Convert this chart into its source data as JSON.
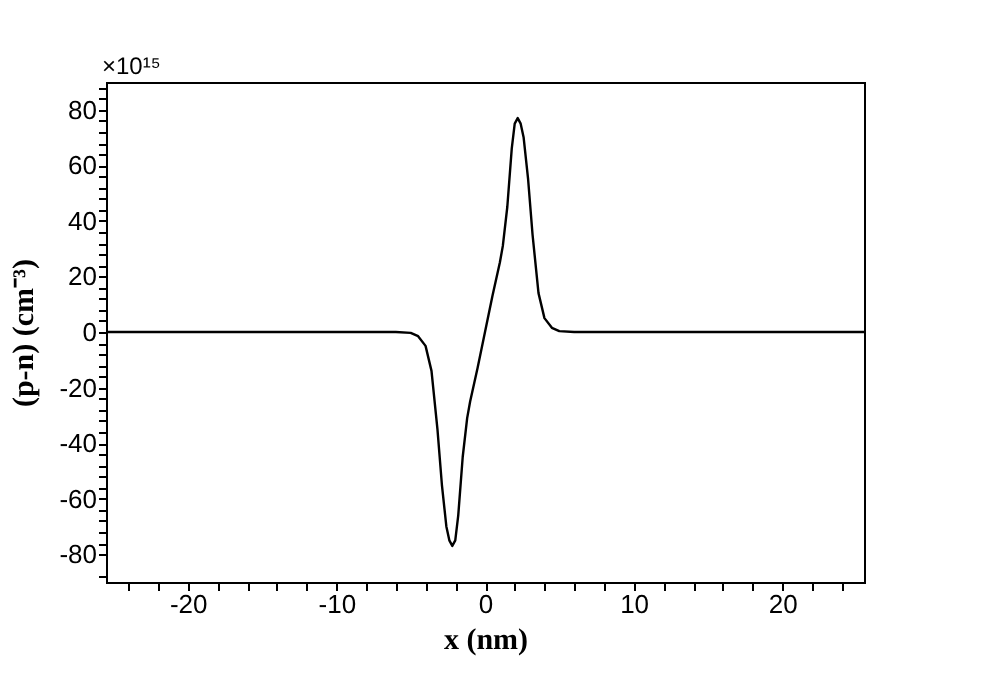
{
  "chart_data": {
    "type": "line",
    "xlabel": "x (nm)",
    "ylabel": "(p-n) (cm⁻³)",
    "annotations": [
      "×10¹⁵"
    ],
    "xlim": [
      -25.5,
      25.5
    ],
    "xticks": [
      {
        "value": -24,
        "label": null
      },
      {
        "value": -22,
        "label": null
      },
      -20,
      {
        "value": -18,
        "label": null
      },
      {
        "value": -16,
        "label": null
      },
      {
        "value": -14,
        "label": null
      },
      {
        "value": -12,
        "label": null
      },
      -10,
      {
        "value": -8,
        "label": null
      },
      {
        "value": -6,
        "label": null
      },
      {
        "value": -4,
        "label": null
      },
      {
        "value": -2,
        "label": null
      },
      0,
      {
        "value": 2,
        "label": null
      },
      {
        "value": 4,
        "label": null
      },
      {
        "value": 6,
        "label": null
      },
      {
        "value": 8,
        "label": null
      },
      10,
      {
        "value": 12,
        "label": null
      },
      {
        "value": 14,
        "label": null
      },
      {
        "value": 16,
        "label": null
      },
      {
        "value": 18,
        "label": null
      },
      20,
      {
        "value": 22,
        "label": null
      },
      {
        "value": 24,
        "label": null
      }
    ],
    "ylim": [
      -90,
      90
    ],
    "yticks": [
      {
        "value": -88,
        "label": null
      },
      -80,
      {
        "value": -76,
        "label": null
      },
      {
        "value": -72,
        "label": null
      },
      {
        "value": -68,
        "label": null
      },
      {
        "value": -64,
        "label": null
      },
      -60,
      {
        "value": -56,
        "label": null
      },
      {
        "value": -52,
        "label": null
      },
      {
        "value": -48,
        "label": null
      },
      {
        "value": -44,
        "label": null
      },
      -40,
      {
        "value": -36,
        "label": null
      },
      {
        "value": -32,
        "label": null
      },
      {
        "value": -28,
        "label": null
      },
      {
        "value": -24,
        "label": null
      },
      -20,
      {
        "value": -16,
        "label": null
      },
      {
        "value": -12,
        "label": null
      },
      {
        "value": -8,
        "label": null
      },
      {
        "value": -4,
        "label": null
      },
      0,
      {
        "value": 4,
        "label": null
      },
      {
        "value": 8,
        "label": null
      },
      {
        "value": 12,
        "label": null
      },
      {
        "value": 16,
        "label": null
      },
      20,
      {
        "value": 24,
        "label": null
      },
      {
        "value": 28,
        "label": null
      },
      {
        "value": 32,
        "label": null
      },
      {
        "value": 36,
        "label": null
      },
      40,
      {
        "value": 44,
        "label": null
      },
      {
        "value": 48,
        "label": null
      },
      {
        "value": 52,
        "label": null
      },
      {
        "value": 56,
        "label": null
      },
      60,
      {
        "value": 64,
        "label": null
      },
      {
        "value": 68,
        "label": null
      },
      {
        "value": 72,
        "label": null
      },
      {
        "value": 76,
        "label": null
      },
      80,
      {
        "value": 84,
        "label": null
      },
      {
        "value": 88,
        "label": null
      }
    ],
    "series": [
      {
        "color": "#000000",
        "x": [
          -25.5,
          -6,
          -5,
          -4.5,
          -4,
          -3.6,
          -3.2,
          -2.9,
          -2.6,
          -2.4,
          -2.2,
          -2.0,
          -1.8,
          -1.5,
          -1.2,
          -1,
          -0.5,
          0,
          0.5,
          1,
          1.2,
          1.5,
          1.8,
          2.0,
          2.2,
          2.4,
          2.6,
          2.9,
          3.2,
          3.6,
          4,
          4.5,
          5,
          6,
          25.5
        ],
        "values": [
          0,
          0,
          -0.3,
          -1.5,
          -5,
          -14,
          -35,
          -55,
          -70,
          -75,
          -77,
          -75,
          -66,
          -45,
          -31,
          -25,
          -13,
          0,
          13,
          25,
          31,
          45,
          66,
          75,
          77,
          75,
          70,
          55,
          35,
          14,
          5,
          1.5,
          0.3,
          0,
          0
        ]
      }
    ]
  }
}
